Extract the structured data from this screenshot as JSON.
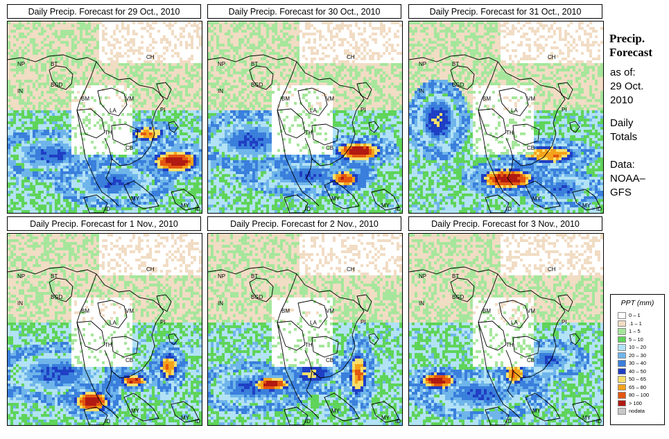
{
  "panels": [
    {
      "title": "Daily Precip. Forecast for  29 Oct., 2010",
      "seed": 11
    },
    {
      "title": "Daily Precip. Forecast for  30 Oct., 2010",
      "seed": 23
    },
    {
      "title": "Daily Precip. Forecast for  31 Oct., 2010",
      "seed": 37
    },
    {
      "title": "Daily Precip. Forecast for  1 Nov., 2010",
      "seed": 41
    },
    {
      "title": "Daily Precip. Forecast for  2 Nov., 2010",
      "seed": 53
    },
    {
      "title": "Daily Precip. Forecast for  3 Nov., 2010",
      "seed": 67
    }
  ],
  "country_labels": [
    "NP",
    "BT",
    "CH",
    "IN",
    "BGD",
    "BM",
    "VM",
    "LA",
    "TH",
    "PI",
    "CB",
    "MY",
    "ID",
    "MY",
    "ID"
  ],
  "side": {
    "title_line1": "Precip.",
    "title_line2": "Forecast",
    "asof_line1": "as of:",
    "asof_line2": "29 Oct.",
    "asof_line3": "2010",
    "daily_line1": "Daily",
    "daily_line2": "Totals",
    "data_line1": "Data:",
    "data_line2": "NOAA–",
    "data_line3": "GFS"
  },
  "legend": {
    "title": "PPT (mm)",
    "entries": [
      {
        "label": "0 – 1",
        "color": "#ffffff"
      },
      {
        "label": ".1 – 1",
        "color": "#f1dcc4"
      },
      {
        "label": "1 – 5",
        "color": "#a6e69c"
      },
      {
        "label": "5 – 10",
        "color": "#5fd45a"
      },
      {
        "label": "10 – 20",
        "color": "#b2e2f6"
      },
      {
        "label": "20 – 30",
        "color": "#6fb5ea"
      },
      {
        "label": "30 – 40",
        "color": "#3a7fdc"
      },
      {
        "label": "40 – 50",
        "color": "#1f3fc4"
      },
      {
        "label": "50 – 65",
        "color": "#f7df6a"
      },
      {
        "label": "65 – 80",
        "color": "#f4a21b"
      },
      {
        "label": "80 – 100",
        "color": "#e35611"
      },
      {
        "label": "> 100",
        "color": "#b01a12"
      },
      {
        "label": "nodata",
        "color": "#c8c8c8"
      }
    ]
  }
}
